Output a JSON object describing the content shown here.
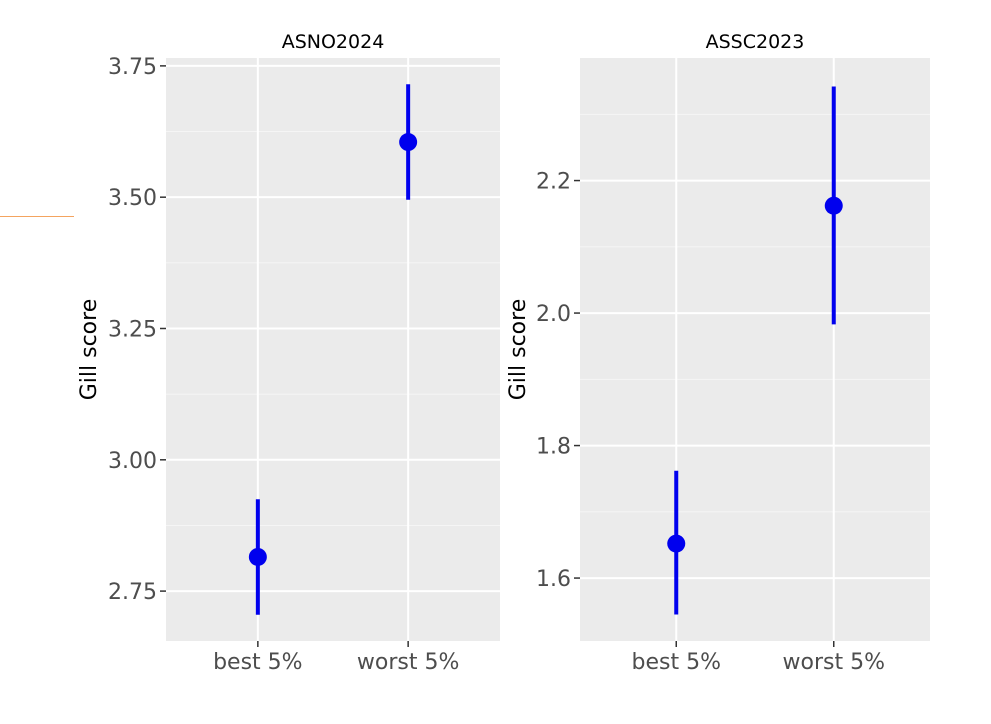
{
  "colors": {
    "panel_bg": "#ebebeb",
    "grid_major": "#ffffff",
    "grid_minor": "#f5f5f5",
    "point": "#0000ee",
    "tick": "#333333",
    "accent": "#f4a460"
  },
  "chart_data": [
    {
      "type": "scatter",
      "title": "ASNO2024",
      "xlabel": "",
      "ylabel": "Gill score",
      "categories": [
        "best 5%",
        "worst 5%"
      ],
      "values": [
        2.815,
        3.605
      ],
      "lower": [
        2.705,
        3.495
      ],
      "upper": [
        2.925,
        3.715
      ],
      "ylim": [
        2.655,
        3.765
      ],
      "yticks": [
        2.75,
        3.0,
        3.25,
        3.5,
        3.75
      ],
      "yticklabels": [
        "2.75",
        "3.00",
        "3.25",
        "3.50",
        "3.75"
      ],
      "grid": true,
      "error_bars": true
    },
    {
      "type": "scatter",
      "title": "ASSC2023",
      "xlabel": "",
      "ylabel": "Gill score",
      "categories": [
        "best 5%",
        "worst 5%"
      ],
      "values": [
        1.652,
        2.162
      ],
      "lower": [
        1.545,
        1.983
      ],
      "upper": [
        1.762,
        2.342
      ],
      "ylim": [
        1.505,
        2.385
      ],
      "yticks": [
        1.6,
        1.8,
        2.0,
        2.2
      ],
      "yticklabels": [
        "1.6",
        "1.8",
        "2.0",
        "2.2"
      ],
      "grid": true,
      "error_bars": true
    }
  ]
}
